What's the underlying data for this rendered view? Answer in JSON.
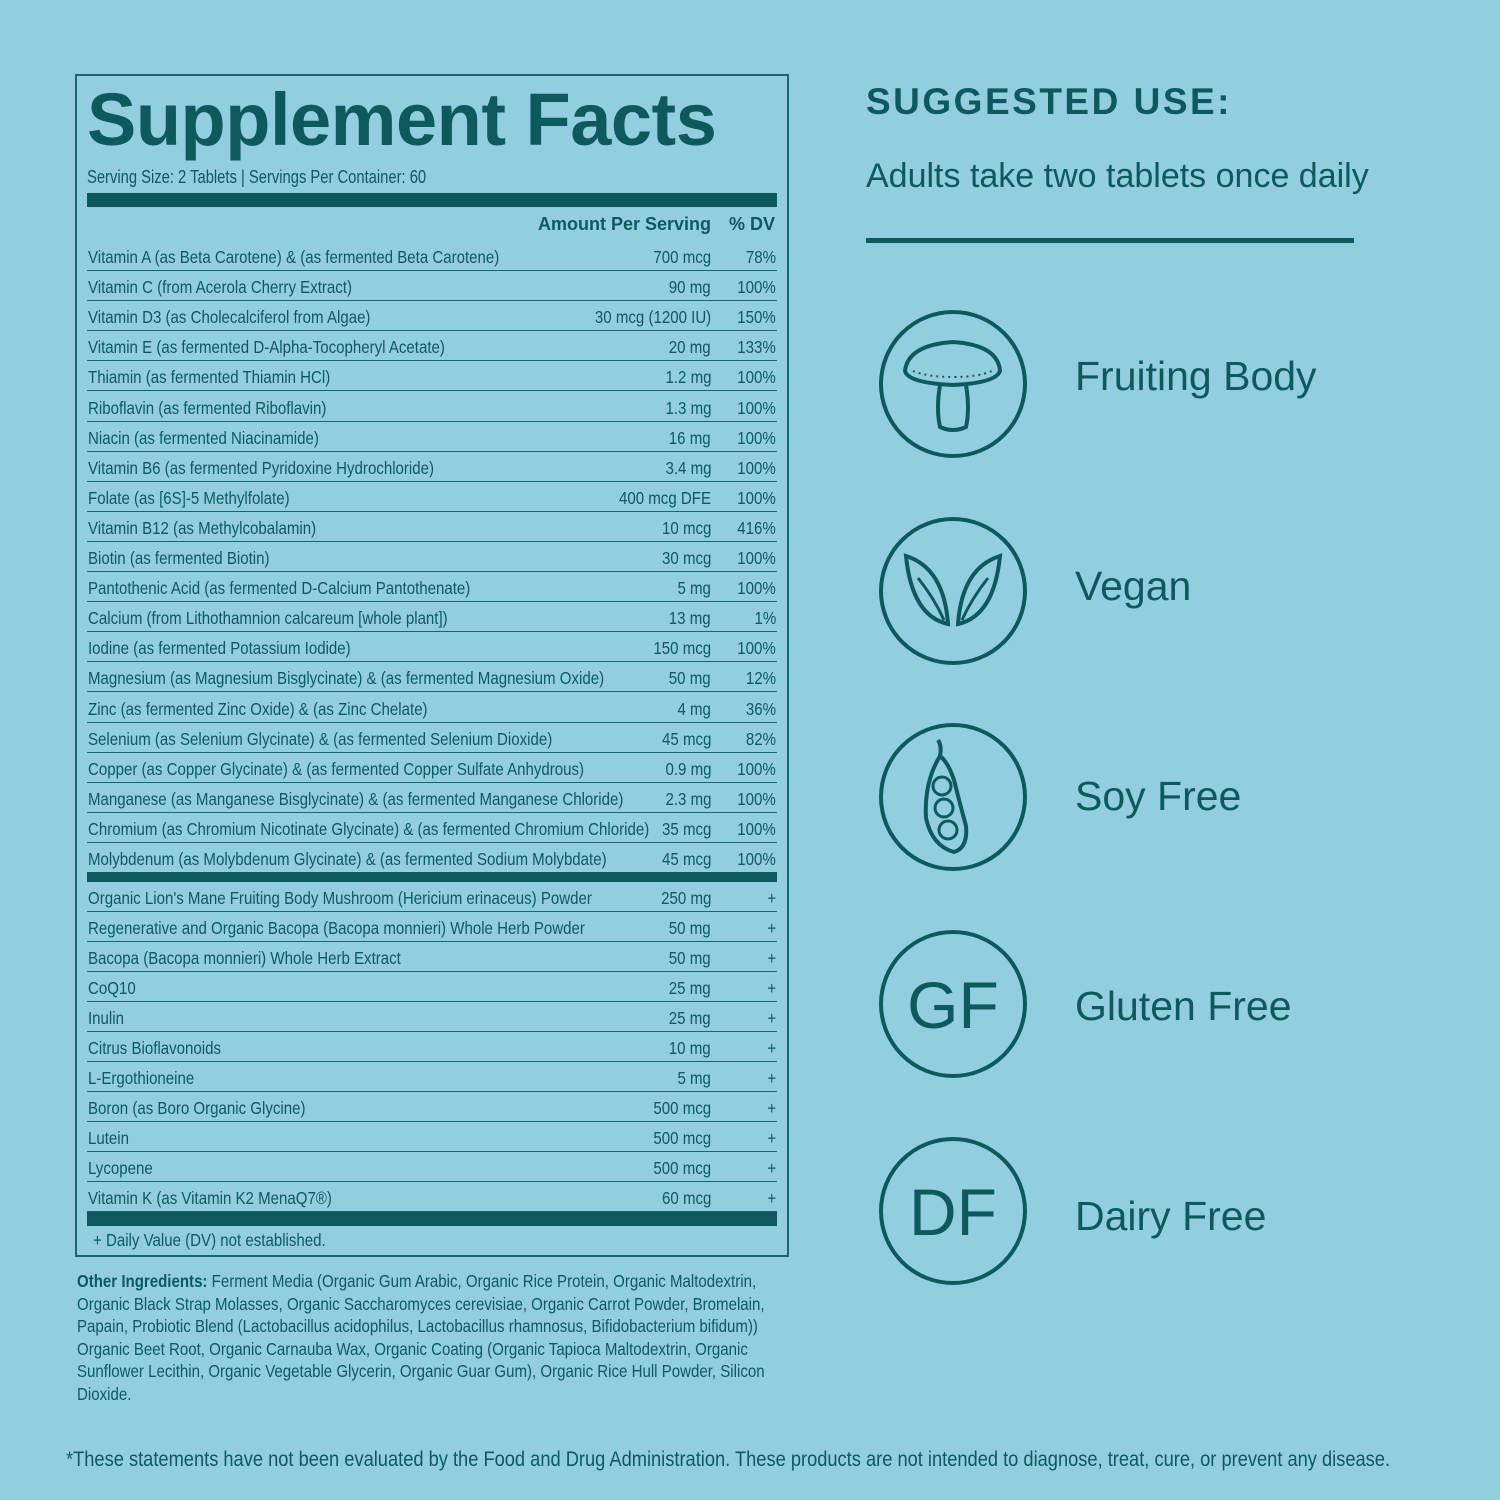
{
  "facts": {
    "title": "Supplement Facts",
    "serving": "Serving Size: 2 Tablets  |  Servings Per Container: 60",
    "header_amount": "Amount Per Serving",
    "header_dv": "% DV",
    "vitamins": [
      {
        "name": "Vitamin A (as Beta Carotene) & (as fermented Beta Carotene)",
        "amount": "700 mcg",
        "dv": "78%"
      },
      {
        "name": "Vitamin C (from Acerola Cherry Extract)",
        "amount": "90 mg",
        "dv": "100%"
      },
      {
        "name": "Vitamin D3 (as Cholecalciferol from Algae)",
        "amount": "30 mcg (1200 IU)",
        "dv": "150%"
      },
      {
        "name": "Vitamin E (as fermented D-Alpha-Tocopheryl Acetate)",
        "amount": "20 mg",
        "dv": "133%"
      },
      {
        "name": "Thiamin (as fermented Thiamin HCl)",
        "amount": "1.2 mg",
        "dv": "100%"
      },
      {
        "name": "Riboflavin (as fermented Riboflavin)",
        "amount": "1.3 mg",
        "dv": "100%"
      },
      {
        "name": "Niacin (as fermented Niacinamide)",
        "amount": "16 mg",
        "dv": "100%"
      },
      {
        "name": "Vitamin B6 (as fermented Pyridoxine Hydrochloride)",
        "amount": "3.4 mg",
        "dv": "100%"
      },
      {
        "name": "Folate (as [6S]-5 Methylfolate)",
        "amount": "400 mcg DFE",
        "dv": "100%"
      },
      {
        "name": "Vitamin B12 (as Methylcobalamin)",
        "amount": "10 mcg",
        "dv": "416%"
      },
      {
        "name": "Biotin (as fermented Biotin)",
        "amount": "30 mcg",
        "dv": "100%"
      },
      {
        "name": "Pantothenic Acid (as fermented D-Calcium Pantothenate)",
        "amount": "5 mg",
        "dv": "100%"
      },
      {
        "name": "Calcium (from Lithothamnion calcareum [whole plant])",
        "amount": "13 mg",
        "dv": "1%"
      },
      {
        "name": "Iodine (as fermented Potassium Iodide)",
        "amount": "150 mcg",
        "dv": "100%"
      },
      {
        "name": "Magnesium (as Magnesium Bisglycinate) &  (as fermented Magnesium Oxide)",
        "amount": "50 mg",
        "dv": "12%"
      },
      {
        "name": "Zinc (as fermented Zinc Oxide) & (as Zinc Chelate)",
        "amount": "4 mg",
        "dv": "36%"
      },
      {
        "name": "Selenium (as Selenium Glycinate) &  (as fermented Selenium Dioxide)",
        "amount": "45 mcg",
        "dv": "82%"
      },
      {
        "name": "Copper (as Copper Glycinate) & (as fermented Copper Sulfate Anhydrous)",
        "amount": "0.9 mg",
        "dv": "100%"
      },
      {
        "name": "Manganese (as Manganese Bisglycinate) & (as fermented Manganese Chloride)",
        "amount": "2.3 mg",
        "dv": "100%"
      },
      {
        "name": "Chromium (as Chromium Nicotinate Glycinate) & (as fermented Chromium Chloride)",
        "amount": "35 mcg",
        "dv": "100%"
      },
      {
        "name": "Molybdenum (as Molybdenum Glycinate) & (as fermented Sodium Molybdate)",
        "amount": "45 mcg",
        "dv": "100%"
      }
    ],
    "others": [
      {
        "name": "Organic Lion's Mane Fruiting Body Mushroom (Hericium erinaceus) Powder",
        "amount": "250 mg",
        "dv": "+"
      },
      {
        "name": "Regenerative and Organic Bacopa (Bacopa monnieri) Whole Herb Powder",
        "amount": "50 mg",
        "dv": "+"
      },
      {
        "name": "Bacopa (Bacopa monnieri) Whole Herb Extract",
        "amount": "50 mg",
        "dv": "+"
      },
      {
        "name": "CoQ10",
        "amount": "25 mg",
        "dv": "+"
      },
      {
        "name": "Inulin",
        "amount": "25 mg",
        "dv": "+"
      },
      {
        "name": "Citrus Bioflavonoids",
        "amount": "10 mg",
        "dv": "+"
      },
      {
        "name": "L-Ergothioneine",
        "amount": "5 mg",
        "dv": "+"
      },
      {
        "name": "Boron (as Boro Organic Glycine)",
        "amount": "500 mcg",
        "dv": "+"
      },
      {
        "name": "Lutein",
        "amount": "500 mcg",
        "dv": "+"
      },
      {
        "name": "Lycopene",
        "amount": "500 mcg",
        "dv": "+"
      },
      {
        "name": "Vitamin K (as Vitamin K2 MenaQ7®)",
        "amount": "60 mcg",
        "dv": "+"
      }
    ],
    "footnote": "+ Daily Value (DV) not established."
  },
  "other_ingredients": {
    "label": "Other Ingredients:",
    "text": " Ferment Media (Organic Gum Arabic, Organic Rice Protein, Organic Maltodextrin, Organic Black Strap Molasses, Organic Saccharomyces cerevisiae, Organic Carrot Powder, Bromelain, Papain, Probiotic Blend (Lactobacillus acidophilus, Lactobacillus rhamnosus, Bifidobacterium bifidum)) Organic Beet Root, Organic Carnauba Wax, Organic Coating (Organic Tapioca Maltodextrin, Organic Sunflower Lecithin, Organic Vegetable Glycerin, Organic Guar Gum), Organic Rice Hull Powder, Silicon Dioxide."
  },
  "disclaimer": "*These statements have not been evaluated by the Food and Drug Administration. These products are not intended to diagnose, treat, cure, or prevent any disease.",
  "suggested": {
    "title": "SUGGESTED USE:",
    "text": "Adults take two tablets once daily"
  },
  "badges": [
    {
      "icon": "mushroom-icon",
      "label": "Fruiting Body"
    },
    {
      "icon": "leaves-icon",
      "label": "Vegan"
    },
    {
      "icon": "soybean-pod-icon",
      "label": "Soy Free",
      "glyph": ""
    },
    {
      "icon": "gf-icon",
      "label": "Gluten Free",
      "glyph": "GF"
    },
    {
      "icon": "df-icon",
      "label": "Dairy Free",
      "glyph": "DF"
    }
  ],
  "colors": {
    "background": "#93cedf",
    "ink": "#0d5a5e"
  }
}
